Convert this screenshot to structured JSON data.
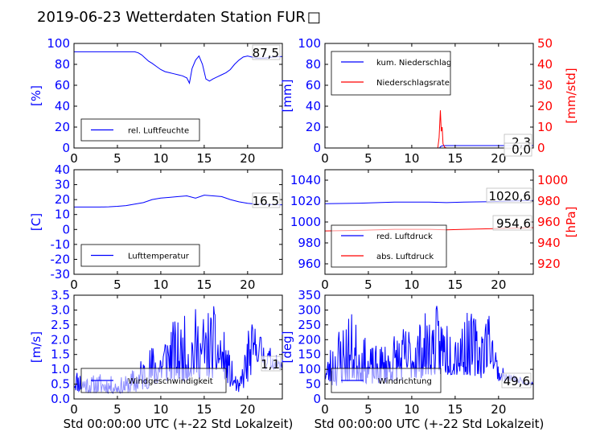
{
  "title": "2019-06-23 Wetterdaten Station FUR",
  "title_suffix_glyph": "□",
  "colors": {
    "primary": "#0000ff",
    "secondary": "#ff0000",
    "text": "#000000"
  },
  "chart_data": [
    {
      "id": "humidity",
      "type": "line",
      "ylabel": "[%]",
      "xlim": [
        0,
        24
      ],
      "ylim": [
        0,
        100
      ],
      "xticks": [
        0,
        5,
        10,
        15,
        20
      ],
      "yticks": [
        0,
        20,
        40,
        60,
        80,
        100
      ],
      "legend": "lower-left",
      "series": [
        {
          "name": "rel. Luftfeuchte",
          "color": "#0000ff",
          "points": [
            [
              0,
              92
            ],
            [
              1,
              92
            ],
            [
              2,
              92
            ],
            [
              3,
              92
            ],
            [
              4,
              92
            ],
            [
              5,
              92
            ],
            [
              6,
              92
            ],
            [
              7,
              92
            ],
            [
              7.4,
              91
            ],
            [
              7.8,
              89
            ],
            [
              8.2,
              86
            ],
            [
              8.6,
              83
            ],
            [
              9,
              81
            ],
            [
              9.5,
              78
            ],
            [
              10,
              75
            ],
            [
              10.5,
              73
            ],
            [
              11,
              72
            ],
            [
              11.5,
              71
            ],
            [
              12,
              70
            ],
            [
              12.5,
              69
            ],
            [
              13,
              67
            ],
            [
              13.3,
              62
            ],
            [
              13.6,
              76
            ],
            [
              14,
              84
            ],
            [
              14.4,
              88
            ],
            [
              14.8,
              80
            ],
            [
              15.2,
              66
            ],
            [
              15.6,
              64
            ],
            [
              16,
              66
            ],
            [
              16.5,
              68
            ],
            [
              17,
              70
            ],
            [
              17.5,
              72
            ],
            [
              18,
              75
            ],
            [
              18.5,
              80
            ],
            [
              19,
              84
            ],
            [
              19.5,
              87
            ],
            [
              20,
              88
            ],
            [
              21,
              86
            ],
            [
              22,
              86
            ],
            [
              23,
              87
            ],
            [
              24,
              87.5
            ]
          ]
        }
      ],
      "value_labels": [
        "87,5"
      ]
    },
    {
      "id": "precipitation",
      "type": "line",
      "ylabel": "[mm]",
      "ylabel2": "[mm/std]",
      "xlim": [
        0,
        24
      ],
      "ylim": [
        0,
        100
      ],
      "ylim2": [
        0,
        50
      ],
      "xticks": [
        0,
        5,
        10,
        15,
        20
      ],
      "yticks": [
        0,
        20,
        40,
        60,
        80,
        100
      ],
      "yticks2": [
        0,
        10,
        20,
        30,
        40,
        50
      ],
      "legend": "top-left",
      "series": [
        {
          "name": "kum. Niederschlag",
          "color": "#0000ff",
          "axis": "left",
          "points": [
            [
              0,
              0
            ],
            [
              13.2,
              0
            ],
            [
              13.3,
              1.2
            ],
            [
              13.5,
              2.1
            ],
            [
              14,
              2.3
            ],
            [
              24,
              2.3
            ]
          ]
        },
        {
          "name": "Niederschlagsrate",
          "color": "#ff0000",
          "axis": "right",
          "points": [
            [
              0,
              0
            ],
            [
              13,
              0
            ],
            [
              13.15,
              5
            ],
            [
              13.3,
              18
            ],
            [
              13.4,
              8
            ],
            [
              13.5,
              10
            ],
            [
              13.6,
              2
            ],
            [
              13.8,
              0.3
            ],
            [
              14,
              0
            ],
            [
              24,
              0
            ]
          ]
        }
      ],
      "value_labels": [
        "2,3",
        "0,0"
      ]
    },
    {
      "id": "temperature",
      "type": "line",
      "ylabel": "[C]",
      "xlim": [
        0,
        24
      ],
      "ylim": [
        -30,
        40
      ],
      "xticks": [
        0,
        5,
        10,
        15,
        20
      ],
      "yticks": [
        -30,
        -20,
        -10,
        0,
        10,
        20,
        30,
        40
      ],
      "legend": "lower-left",
      "series": [
        {
          "name": "Lufttemperatur",
          "color": "#0000ff",
          "points": [
            [
              0,
              15
            ],
            [
              1,
              15
            ],
            [
              2,
              15
            ],
            [
              3,
              15
            ],
            [
              4,
              15.2
            ],
            [
              5,
              15.5
            ],
            [
              6,
              16
            ],
            [
              7,
              17
            ],
            [
              8,
              18
            ],
            [
              9,
              20
            ],
            [
              10,
              21
            ],
            [
              11,
              21.5
            ],
            [
              12,
              22
            ],
            [
              13,
              22.5
            ],
            [
              14,
              21
            ],
            [
              15,
              23
            ],
            [
              16,
              22.5
            ],
            [
              17,
              22
            ],
            [
              18,
              20
            ],
            [
              19,
              18.5
            ],
            [
              20,
              17.5
            ],
            [
              21,
              17
            ],
            [
              22,
              16.8
            ],
            [
              23,
              16.6
            ],
            [
              24,
              16.5
            ]
          ]
        }
      ],
      "value_labels": [
        "16,5"
      ]
    },
    {
      "id": "pressure",
      "type": "line",
      "ylabel2": "[hPa]",
      "xlim": [
        0,
        24
      ],
      "ylim": [
        950,
        1050
      ],
      "ylim2": [
        910,
        1010
      ],
      "xticks": [
        0,
        5,
        10,
        15,
        20
      ],
      "yticks": [
        960,
        980,
        1000,
        1020,
        1040
      ],
      "yticks2": [
        920,
        940,
        960,
        980,
        1000
      ],
      "legend": "lower-left",
      "series": [
        {
          "name": "red. Luftdruck",
          "color": "#0000ff",
          "axis": "left",
          "points": [
            [
              0,
              1017.5
            ],
            [
              4,
              1018
            ],
            [
              8,
              1019
            ],
            [
              12,
              1019
            ],
            [
              14,
              1018.5
            ],
            [
              16,
              1019
            ],
            [
              19,
              1019.5
            ],
            [
              21,
              1020
            ],
            [
              24,
              1020.6
            ]
          ]
        },
        {
          "name": "abs. Luftdruck",
          "color": "#ff0000",
          "axis": "right",
          "points": [
            [
              0,
              951.5
            ],
            [
              4,
              952
            ],
            [
              8,
              953
            ],
            [
              12,
              953
            ],
            [
              14,
              952.5
            ],
            [
              16,
              953
            ],
            [
              19,
              953.5
            ],
            [
              21,
              954
            ],
            [
              24,
              954.6
            ]
          ]
        }
      ],
      "value_labels": [
        "1020,6",
        "954,6"
      ]
    },
    {
      "id": "wind-speed",
      "type": "line",
      "ylabel": "[m/s]",
      "xlabel": "Std 00:00:00 UTC (+-22 Std Lokalzeit)",
      "xlim": [
        0,
        24
      ],
      "ylim": [
        0,
        3.5
      ],
      "xticks": [
        0,
        5,
        10,
        15,
        20
      ],
      "yticks": [
        0.0,
        0.5,
        1.0,
        1.5,
        2.0,
        2.5,
        3.0,
        3.5
      ],
      "ytick_labels": [
        "0.0",
        "0.5",
        "1.0",
        "1.5",
        "2.0",
        "2.5",
        "3.0",
        "3.5"
      ],
      "legend": "lower-left",
      "series": [
        {
          "name": "Windgeschwindigkeit",
          "color": "#0000ff",
          "noise": {
            "seed": 11,
            "step": 0.07
          },
          "envelope": [
            [
              0,
              0.3,
              1.1
            ],
            [
              1,
              0.2,
              1.0
            ],
            [
              2,
              0.2,
              0.8
            ],
            [
              3,
              0.2,
              0.9
            ],
            [
              4,
              0.2,
              0.8
            ],
            [
              5,
              0.2,
              0.7
            ],
            [
              6,
              0.2,
              0.8
            ],
            [
              7,
              0.2,
              1.1
            ],
            [
              8,
              0.3,
              1.6
            ],
            [
              9,
              0.4,
              1.9
            ],
            [
              10,
              0.5,
              2.2
            ],
            [
              11,
              0.6,
              2.8
            ],
            [
              12,
              0.6,
              2.6
            ],
            [
              13,
              0.6,
              2.9
            ],
            [
              14,
              0.7,
              3.1
            ],
            [
              15,
              0.7,
              3.0
            ],
            [
              16,
              0.7,
              3.2
            ],
            [
              17,
              0.8,
              2.6
            ],
            [
              18,
              0.4,
              1.5
            ],
            [
              19,
              0.2,
              0.5
            ],
            [
              20,
              0.5,
              2.5
            ],
            [
              21,
              1.3,
              2.6
            ],
            [
              22,
              1.0,
              2.0
            ],
            [
              23,
              1.0,
              1.6
            ],
            [
              24,
              1.0,
              1.2
            ]
          ]
        }
      ],
      "value_labels": [
        "1,1"
      ]
    },
    {
      "id": "wind-direction",
      "type": "line",
      "ylabel": "[deg]",
      "xlabel": "Std 00:00:00 UTC (+-22 Std Lokalzeit)",
      "xlim": [
        0,
        24
      ],
      "ylim": [
        0,
        350
      ],
      "xticks": [
        0,
        5,
        10,
        15,
        20
      ],
      "yticks": [
        0,
        50,
        100,
        150,
        200,
        250,
        300,
        350
      ],
      "legend": "lower-left",
      "series": [
        {
          "name": "Windrichtung",
          "color": "#0000ff",
          "noise": {
            "seed": 23,
            "step": 0.07
          },
          "envelope": [
            [
              0,
              60,
              110
            ],
            [
              1,
              40,
              230
            ],
            [
              2,
              50,
              280
            ],
            [
              3,
              60,
              300
            ],
            [
              4,
              60,
              250
            ],
            [
              5,
              50,
              180
            ],
            [
              6,
              50,
              180
            ],
            [
              7,
              50,
              200
            ],
            [
              8,
              60,
              230
            ],
            [
              9,
              60,
              250
            ],
            [
              10,
              70,
              260
            ],
            [
              11,
              70,
              280
            ],
            [
              12,
              80,
              300
            ],
            [
              13,
              80,
              320
            ],
            [
              14,
              80,
              300
            ],
            [
              15,
              80,
              290
            ],
            [
              16,
              80,
              300
            ],
            [
              17,
              80,
              290
            ],
            [
              18,
              70,
              290
            ],
            [
              19,
              120,
              320
            ],
            [
              20,
              60,
              120
            ],
            [
              21,
              60,
              90
            ],
            [
              22,
              55,
              80
            ],
            [
              23,
              50,
              70
            ],
            [
              24,
              45,
              60
            ]
          ]
        }
      ],
      "value_labels": [
        "49,6"
      ]
    }
  ]
}
